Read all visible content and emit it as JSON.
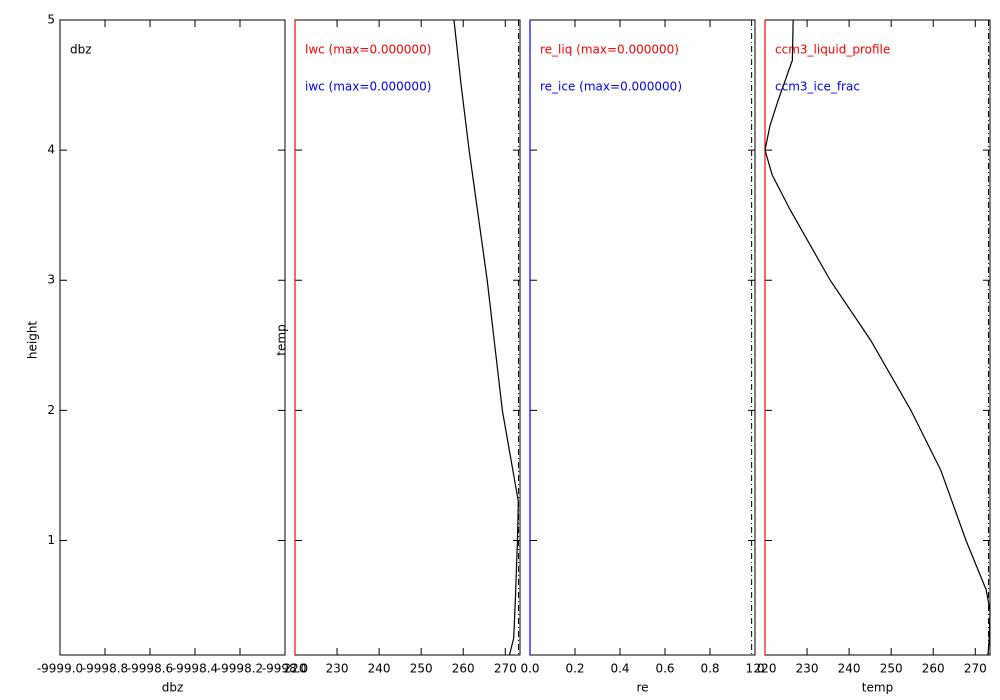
{
  "chart_data": [
    {
      "type": "line",
      "xlabel": "dbz",
      "ylabel": "height",
      "xlim": [
        -9999.0,
        -9998.0
      ],
      "xticks": [
        {
          "value": -9999.0,
          "label": "-9999.0"
        },
        {
          "value": -9998.8,
          "label": "-9998.8"
        },
        {
          "value": -9998.6,
          "label": "-9998.6"
        },
        {
          "value": -9998.4,
          "label": "-9998.4"
        },
        {
          "value": -9998.2,
          "label": "-9998.2"
        },
        {
          "value": -9998.0,
          "label": "-9998.0"
        }
      ],
      "ylim": [
        0.12,
        5
      ],
      "yticks": [
        1,
        2,
        3,
        4,
        5
      ],
      "ytick_labels": true,
      "series": [
        {
          "name": "dbz",
          "color": "#000000"
        }
      ]
    },
    {
      "type": "line",
      "ylabel": "temp",
      "xlim": [
        220,
        273.5
      ],
      "xticks": [
        220,
        230,
        240,
        250,
        260,
        270
      ],
      "ylim": [
        0.12,
        5
      ],
      "yticks": [
        1,
        2,
        3,
        4,
        5
      ],
      "ytick_labels": false,
      "refline_x": 273.15,
      "series": [
        {
          "name": "lwc (max=0.000000)",
          "color": "#ff0000",
          "x": [
            220,
            220
          ],
          "y": [
            0.12,
            5
          ]
        },
        {
          "name": "iwc (max=0.000000)",
          "color": "#0000ff"
        },
        {
          "color": "#000000",
          "x": [
            257.8,
            259.5,
            261.4,
            265.7,
            269.3,
            273.1,
            272.9,
            272.4,
            272,
            271
          ],
          "y": [
            5,
            4.5,
            4,
            3,
            2,
            1.3,
            1,
            0.55,
            0.25,
            0.12
          ]
        }
      ]
    },
    {
      "type": "line",
      "xlabel": "re",
      "xlim": [
        0,
        1
      ],
      "xticks": [
        {
          "value": 0,
          "label": "0.0"
        },
        0.2,
        0.4,
        0.6,
        0.8,
        {
          "value": 1,
          "label": "1.0"
        }
      ],
      "ylim": [
        0.12,
        5
      ],
      "yticks": [
        1,
        2,
        3,
        4,
        5
      ],
      "ytick_labels": false,
      "refline_x": 0.985,
      "series": [
        {
          "name": "re_liq (max=0.000000)",
          "color": "#ff0000"
        },
        {
          "name": "re_ice (max=0.000000)",
          "color": "#0000ff",
          "x": [
            0,
            0
          ],
          "y": [
            0.12,
            5
          ]
        }
      ]
    },
    {
      "type": "line",
      "xlabel": "temp",
      "xlim": [
        220,
        273.5
      ],
      "xticks": [
        220,
        230,
        240,
        250,
        260,
        270
      ],
      "ylim": [
        0.12,
        5
      ],
      "yticks": [
        1,
        2,
        3,
        4,
        5
      ],
      "ytick_labels": false,
      "refline_x": 273.15,
      "series": [
        {
          "name": "ccm3_liquid_profile",
          "color": "#ff0000",
          "x": [
            220,
            220
          ],
          "y": [
            0.12,
            5
          ]
        },
        {
          "name": "ccm3_ice_frac",
          "color": "#0000ff"
        },
        {
          "color": "#000000",
          "x": [
            226.7,
            226.5,
            223.1,
            221.2,
            220,
            221.7,
            226,
            235.5,
            245.1,
            254.7,
            261.8,
            267.8,
            272.6,
            273.5,
            273.3,
            273
          ],
          "y": [
            5,
            4.69,
            4.38,
            4.19,
            4,
            3.81,
            3.54,
            3,
            2.54,
            2,
            1.54,
            1,
            0.62,
            0.46,
            0.23,
            0.12
          ]
        }
      ]
    }
  ]
}
